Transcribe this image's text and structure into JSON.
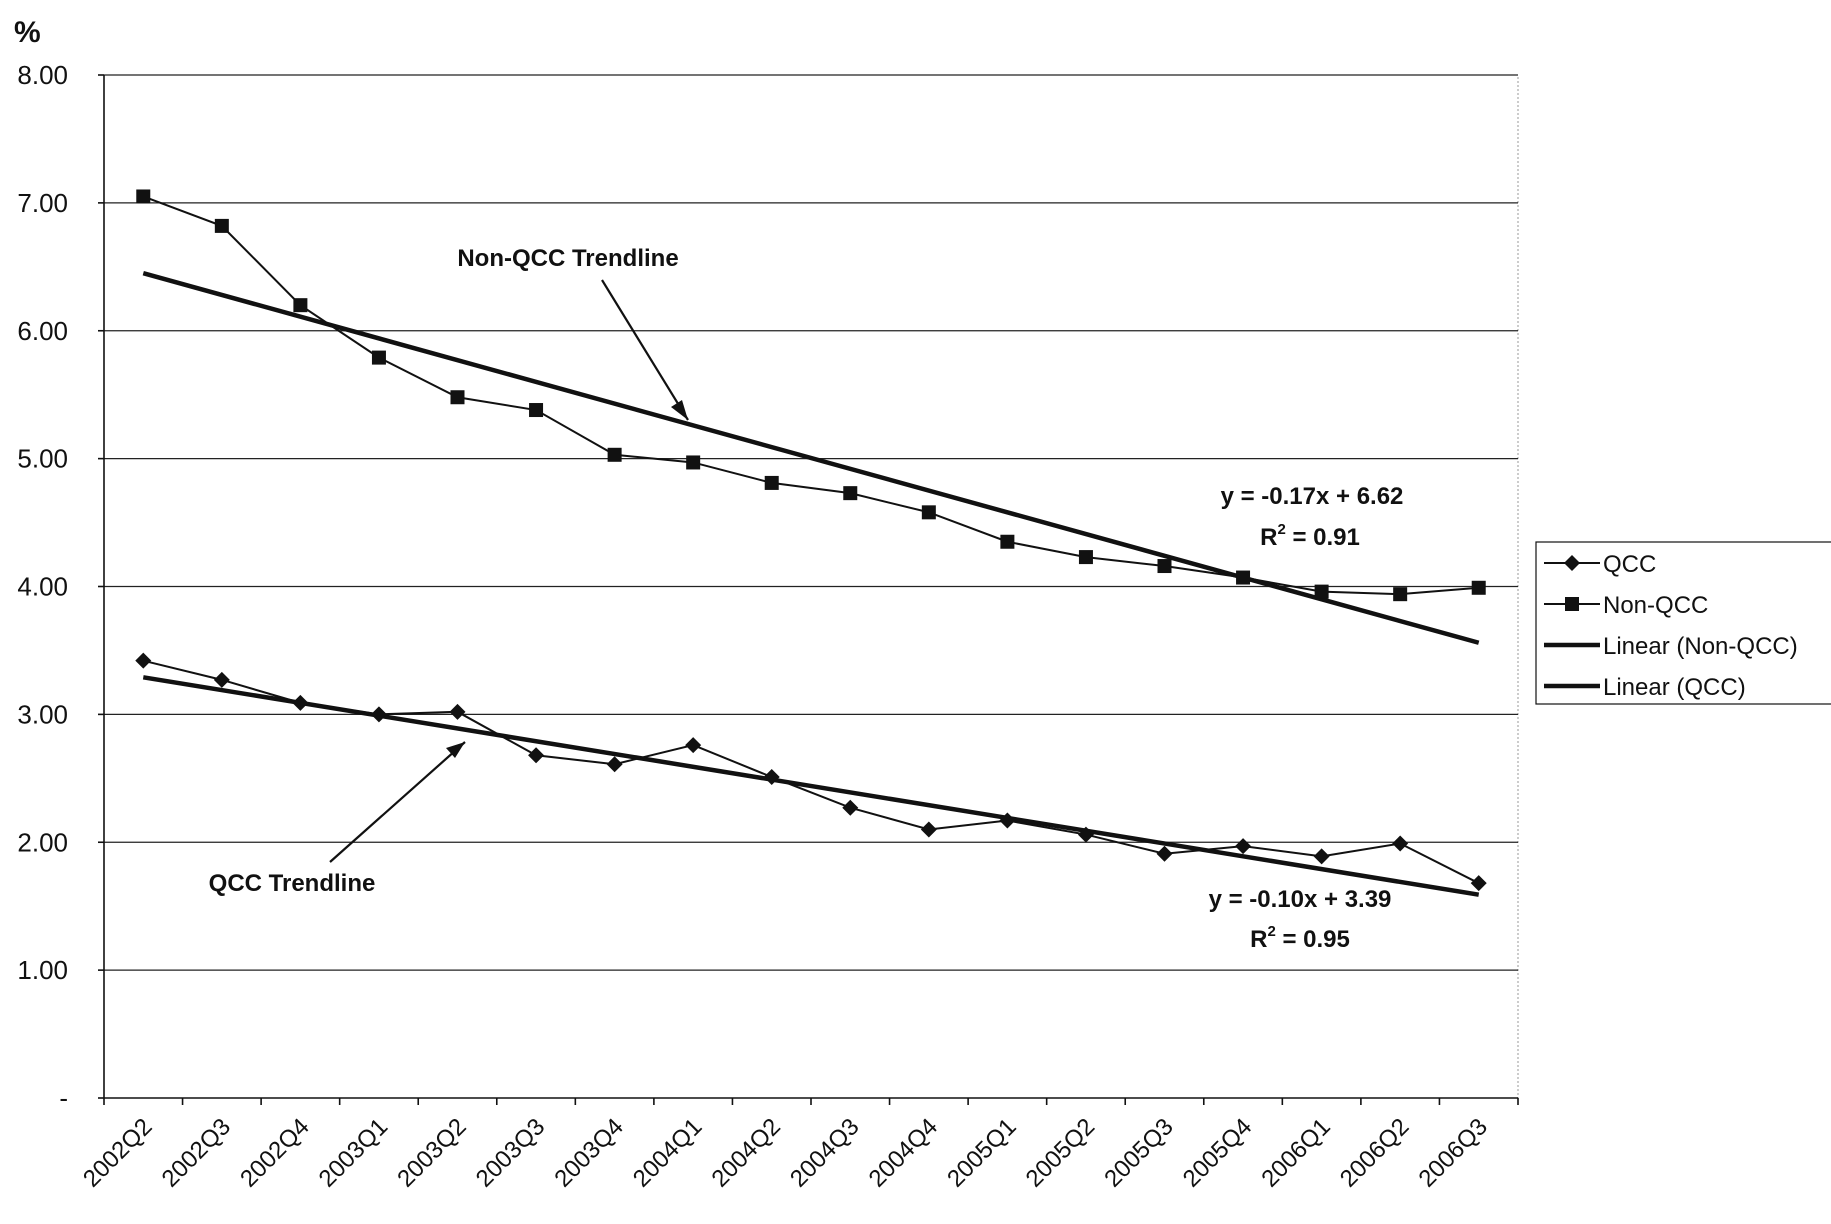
{
  "chart_data": {
    "type": "line",
    "unit_label": "%",
    "categories": [
      "2002Q2",
      "2002Q3",
      "2002Q4",
      "2003Q1",
      "2003Q2",
      "2003Q3",
      "2003Q4",
      "2004Q1",
      "2004Q2",
      "2004Q3",
      "2004Q4",
      "2005Q1",
      "2005Q2",
      "2005Q3",
      "2005Q4",
      "2006Q1",
      "2006Q2",
      "2006Q3"
    ],
    "ylim": [
      0,
      8
    ],
    "yticks": [
      {
        "value": 0,
        "label": "-"
      },
      {
        "value": 1,
        "label": "1.00"
      },
      {
        "value": 2,
        "label": "2.00"
      },
      {
        "value": 3,
        "label": "3.00"
      },
      {
        "value": 4,
        "label": "4.00"
      },
      {
        "value": 5,
        "label": "5.00"
      },
      {
        "value": 6,
        "label": "6.00"
      },
      {
        "value": 7,
        "label": "7.00"
      },
      {
        "value": 8,
        "label": "8.00"
      }
    ],
    "grid": true,
    "series": [
      {
        "name": "QCC",
        "marker": "diamond",
        "values": [
          3.42,
          3.27,
          3.09,
          3.0,
          3.02,
          2.68,
          2.61,
          2.76,
          2.51,
          2.27,
          2.1,
          2.17,
          2.06,
          1.91,
          1.97,
          1.89,
          1.99,
          1.68
        ]
      },
      {
        "name": "Non-QCC",
        "marker": "square",
        "values": [
          7.05,
          6.82,
          6.2,
          5.79,
          5.48,
          5.38,
          5.03,
          4.97,
          4.81,
          4.73,
          4.58,
          4.35,
          4.23,
          4.16,
          4.07,
          3.96,
          3.94,
          3.99
        ]
      }
    ],
    "trendlines": [
      {
        "name": "Linear (Non-QCC)",
        "slope": -0.17,
        "intercept": 6.62
      },
      {
        "name": "Linear (QCC)",
        "slope": -0.1,
        "intercept": 3.39
      }
    ],
    "annotations": {
      "nonqcc_label": "Non-QCC Trendline",
      "qcc_label": "QCC Trendline",
      "nonqcc_eq": "y = -0.17x + 6.62",
      "nonqcc_r2_prefix": "R",
      "nonqcc_r2_sup": "2",
      "nonqcc_r2_suffix": " = 0.91",
      "qcc_eq": "y = -0.10x + 3.39",
      "qcc_r2_prefix": "R",
      "qcc_r2_sup": "2",
      "qcc_r2_suffix": " = 0.95"
    },
    "legend": {
      "placement": "right",
      "entries": [
        {
          "label": "QCC",
          "marker": "diamond"
        },
        {
          "label": "Non-QCC",
          "marker": "square"
        },
        {
          "label": "Linear (Non-QCC)",
          "marker": "none"
        },
        {
          "label": "Linear (QCC)",
          "marker": "none"
        }
      ]
    },
    "colors": {
      "line": "#111111",
      "grid": "#222222"
    }
  }
}
